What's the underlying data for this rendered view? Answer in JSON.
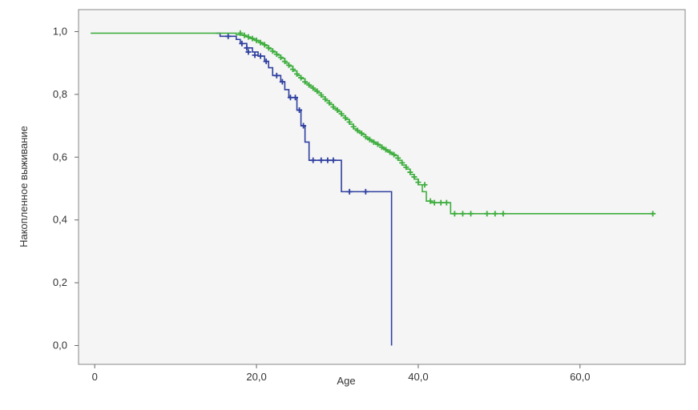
{
  "chart_data": {
    "type": "line",
    "subtype": "kaplan-meier survival curve",
    "xlabel": "Age",
    "ylabel": "Накопленное выживание",
    "xlim": [
      -2,
      73
    ],
    "ylim": [
      -0.06,
      1.07
    ],
    "x_ticks": [
      0,
      20,
      40,
      60
    ],
    "x_tick_labels": [
      "0",
      "20,0",
      "40,0",
      "60,0"
    ],
    "y_ticks": [
      0.0,
      0.2,
      0.4,
      0.6,
      0.8,
      1.0
    ],
    "y_tick_labels": [
      "0,0",
      "0,2",
      "0,4",
      "0,6",
      "0,8",
      "1,0"
    ],
    "grid": false,
    "legend": "none",
    "plot_background": "#f5f5f5",
    "series": [
      {
        "color": "#2f3f9f",
        "steps": [
          [
            15.0,
            0.995
          ],
          [
            15.5,
            0.985
          ],
          [
            17.5,
            0.975
          ],
          [
            18.0,
            0.962
          ],
          [
            18.8,
            0.948
          ],
          [
            19.5,
            0.935
          ],
          [
            20.2,
            0.922
          ],
          [
            21.0,
            0.905
          ],
          [
            21.5,
            0.885
          ],
          [
            22.0,
            0.86
          ],
          [
            23.0,
            0.84
          ],
          [
            23.5,
            0.815
          ],
          [
            24.0,
            0.79
          ],
          [
            25.0,
            0.75
          ],
          [
            25.5,
            0.7
          ],
          [
            26.0,
            0.648
          ],
          [
            26.5,
            0.59
          ],
          [
            30.5,
            0.49
          ],
          [
            36.7,
            0.0
          ]
        ],
        "end_x": 36.7,
        "censored": [
          [
            16.5,
            0.985
          ],
          [
            18.2,
            0.962
          ],
          [
            18.8,
            0.948
          ],
          [
            19.0,
            0.935
          ],
          [
            19.8,
            0.925
          ],
          [
            20.5,
            0.922
          ],
          [
            21.2,
            0.905
          ],
          [
            22.5,
            0.86
          ],
          [
            23.2,
            0.84
          ],
          [
            24.2,
            0.79
          ],
          [
            24.8,
            0.79
          ],
          [
            25.3,
            0.75
          ],
          [
            25.8,
            0.7
          ],
          [
            27.0,
            0.59
          ],
          [
            28.0,
            0.59
          ],
          [
            28.8,
            0.59
          ],
          [
            29.5,
            0.59
          ],
          [
            31.5,
            0.49
          ],
          [
            33.5,
            0.49
          ]
        ]
      },
      {
        "color": "#3fae3f",
        "steps": [
          [
            -0.5,
            0.995
          ],
          [
            17.5,
            0.99
          ],
          [
            18.5,
            0.985
          ],
          [
            19.0,
            0.98
          ],
          [
            19.5,
            0.975
          ],
          [
            20.0,
            0.97
          ],
          [
            20.5,
            0.962
          ],
          [
            21.0,
            0.955
          ],
          [
            21.5,
            0.945
          ],
          [
            22.0,
            0.935
          ],
          [
            22.5,
            0.925
          ],
          [
            23.0,
            0.915
          ],
          [
            23.5,
            0.9
          ],
          [
            24.0,
            0.89
          ],
          [
            24.5,
            0.875
          ],
          [
            25.0,
            0.86
          ],
          [
            25.5,
            0.85
          ],
          [
            26.0,
            0.835
          ],
          [
            26.5,
            0.825
          ],
          [
            27.0,
            0.815
          ],
          [
            27.5,
            0.805
          ],
          [
            28.0,
            0.792
          ],
          [
            28.5,
            0.78
          ],
          [
            29.0,
            0.768
          ],
          [
            29.5,
            0.755
          ],
          [
            30.0,
            0.745
          ],
          [
            30.5,
            0.732
          ],
          [
            31.0,
            0.72
          ],
          [
            31.5,
            0.705
          ],
          [
            32.0,
            0.69
          ],
          [
            32.5,
            0.68
          ],
          [
            33.0,
            0.672
          ],
          [
            33.5,
            0.66
          ],
          [
            34.0,
            0.652
          ],
          [
            34.5,
            0.645
          ],
          [
            35.0,
            0.638
          ],
          [
            35.5,
            0.628
          ],
          [
            36.0,
            0.62
          ],
          [
            36.5,
            0.612
          ],
          [
            37.0,
            0.605
          ],
          [
            37.5,
            0.59
          ],
          [
            38.0,
            0.575
          ],
          [
            38.5,
            0.562
          ],
          [
            39.0,
            0.545
          ],
          [
            39.5,
            0.53
          ],
          [
            40.0,
            0.512
          ],
          [
            40.5,
            0.49
          ],
          [
            41.0,
            0.46
          ],
          [
            41.5,
            0.455
          ],
          [
            44.0,
            0.42
          ]
        ],
        "end_x": 69.0,
        "censored": [
          [
            18.0,
            0.995
          ],
          [
            18.5,
            0.988
          ],
          [
            19.0,
            0.983
          ],
          [
            19.5,
            0.978
          ],
          [
            20.0,
            0.972
          ],
          [
            20.5,
            0.965
          ],
          [
            21.0,
            0.958
          ],
          [
            21.5,
            0.948
          ],
          [
            22.0,
            0.938
          ],
          [
            22.5,
            0.928
          ],
          [
            23.0,
            0.918
          ],
          [
            23.5,
            0.905
          ],
          [
            24.0,
            0.893
          ],
          [
            24.5,
            0.88
          ],
          [
            25.0,
            0.865
          ],
          [
            25.5,
            0.853
          ],
          [
            26.0,
            0.84
          ],
          [
            26.5,
            0.83
          ],
          [
            27.0,
            0.82
          ],
          [
            27.5,
            0.81
          ],
          [
            28.0,
            0.798
          ],
          [
            28.5,
            0.785
          ],
          [
            29.0,
            0.773
          ],
          [
            29.5,
            0.76
          ],
          [
            30.0,
            0.75
          ],
          [
            30.5,
            0.738
          ],
          [
            31.0,
            0.725
          ],
          [
            31.5,
            0.712
          ],
          [
            32.0,
            0.697
          ],
          [
            32.5,
            0.685
          ],
          [
            33.0,
            0.676
          ],
          [
            33.5,
            0.665
          ],
          [
            34.0,
            0.656
          ],
          [
            34.5,
            0.648
          ],
          [
            35.0,
            0.641
          ],
          [
            35.5,
            0.632
          ],
          [
            36.0,
            0.624
          ],
          [
            36.5,
            0.616
          ],
          [
            37.0,
            0.608
          ],
          [
            37.5,
            0.597
          ],
          [
            38.0,
            0.582
          ],
          [
            38.5,
            0.568
          ],
          [
            39.0,
            0.552
          ],
          [
            39.5,
            0.537
          ],
          [
            40.0,
            0.52
          ],
          [
            40.8,
            0.512
          ],
          [
            41.5,
            0.46
          ],
          [
            42.0,
            0.455
          ],
          [
            42.8,
            0.455
          ],
          [
            43.5,
            0.455
          ],
          [
            44.5,
            0.42
          ],
          [
            45.5,
            0.42
          ],
          [
            46.5,
            0.42
          ],
          [
            48.5,
            0.42
          ],
          [
            49.5,
            0.42
          ],
          [
            50.5,
            0.42
          ],
          [
            69.0,
            0.42
          ]
        ]
      }
    ]
  }
}
